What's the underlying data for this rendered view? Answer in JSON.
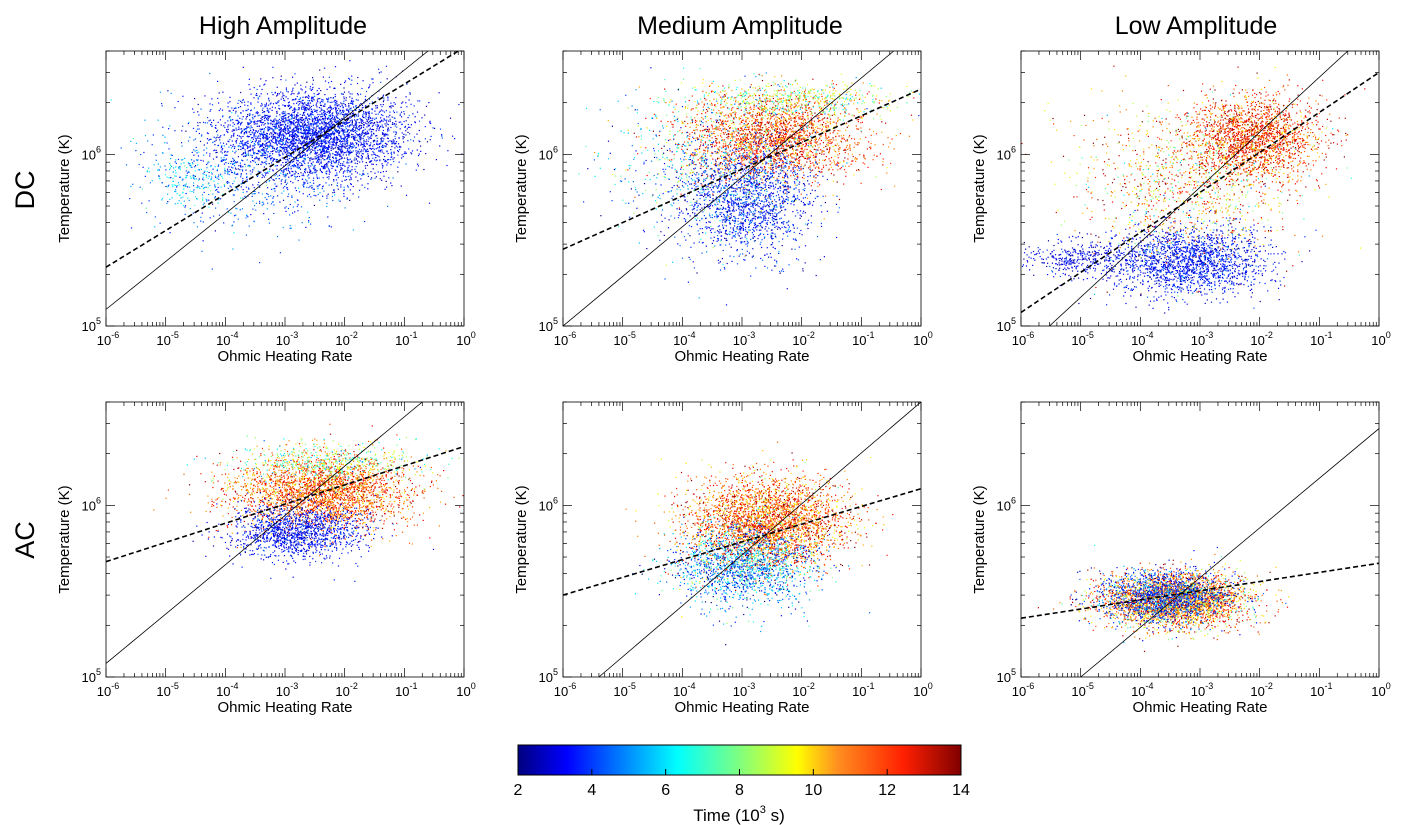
{
  "figure": {
    "columns": [
      "High Amplitude",
      "Medium Amplitude",
      "Low Amplitude"
    ],
    "rows": [
      "DC",
      "AC"
    ],
    "colorbar": {
      "label": "Time (10",
      "label_exp": "3",
      "label_end": " s)",
      "ticks": [
        "2",
        "4",
        "6",
        "8",
        "10",
        "12",
        "14"
      ],
      "range": [
        2,
        14
      ],
      "colormap": "jet"
    }
  },
  "chart_data": [
    {
      "type": "scatter",
      "panel": "DC / High Amplitude",
      "xlabel": "Ohmic Heating Rate",
      "ylabel": "Temperature (K)",
      "xscale": "log",
      "yscale": "log",
      "xlim": [
        1e-06,
        1
      ],
      "ylim": [
        100000.0,
        4000000.0
      ],
      "xticks": [
        "10|-6",
        "10|-5",
        "10|-4",
        "10|-3",
        "10|-2",
        "10|-1",
        "10|0"
      ],
      "yticks": [
        "10|5",
        "10|6"
      ],
      "fit_solid": [
        [
          1e-06,
          125000.0
        ],
        [
          0.25,
          4000000.0
        ]
      ],
      "fit_dashed": [
        [
          1e-06,
          220000.0
        ],
        [
          0.8,
          4000000.0
        ]
      ],
      "clusters": [
        {
          "cx": -2.5,
          "cy": 6.12,
          "sx": 0.8,
          "sy": 0.13,
          "t": 3.5,
          "st": 0.6,
          "n": 3600
        },
        {
          "cx": -3.6,
          "cy": 5.9,
          "sx": 0.9,
          "sy": 0.18,
          "t": 4.5,
          "st": 0.9,
          "n": 700
        },
        {
          "cx": -4.6,
          "cy": 5.85,
          "sx": 0.35,
          "sy": 0.07,
          "t": 6.2,
          "st": 0.6,
          "n": 150
        }
      ]
    },
    {
      "type": "scatter",
      "panel": "DC / Medium Amplitude",
      "xlabel": "Ohmic Heating Rate",
      "ylabel": "Temperature (K)",
      "xscale": "log",
      "yscale": "log",
      "xlim": [
        1e-06,
        1
      ],
      "ylim": [
        100000.0,
        4000000.0
      ],
      "xticks": [
        "10|-6",
        "10|-5",
        "10|-4",
        "10|-3",
        "10|-2",
        "10|-1",
        "10|0"
      ],
      "yticks": [
        "10|5",
        "10|6"
      ],
      "fit_solid": [
        [
          1e-06,
          100000.0
        ],
        [
          0.35,
          4000000.0
        ]
      ],
      "fit_dashed": [
        [
          1e-06,
          280000.0
        ],
        [
          1,
          2400000.0
        ]
      ],
      "clusters": [
        {
          "cx": -2.5,
          "cy": 6.1,
          "sx": 0.75,
          "sy": 0.12,
          "t": 11.8,
          "st": 1.3,
          "n": 2400
        },
        {
          "cx": -2.9,
          "cy": 5.72,
          "sx": 0.55,
          "sy": 0.16,
          "t": 3.6,
          "st": 0.9,
          "n": 1500
        },
        {
          "cx": -2.2,
          "cy": 6.32,
          "sx": 0.9,
          "sy": 0.06,
          "t": 8.5,
          "st": 1.6,
          "n": 600
        },
        {
          "cx": -3.6,
          "cy": 5.95,
          "sx": 0.8,
          "sy": 0.2,
          "t": 5.5,
          "st": 2.0,
          "n": 700
        }
      ]
    },
    {
      "type": "scatter",
      "panel": "DC / Low Amplitude",
      "xlabel": "Ohmic Heating Rate",
      "ylabel": "Temperature (K)",
      "xscale": "log",
      "yscale": "log",
      "xlim": [
        1e-06,
        1
      ],
      "ylim": [
        100000.0,
        4000000.0
      ],
      "xticks": [
        "10|-6",
        "10|-5",
        "10|-4",
        "10|-3",
        "10|-2",
        "10|-1",
        "10|0"
      ],
      "yticks": [
        "10|5",
        "10|6"
      ],
      "fit_solid": [
        [
          3e-06,
          100000.0
        ],
        [
          0.3,
          4000000.0
        ]
      ],
      "fit_dashed": [
        [
          1e-06,
          120000.0
        ],
        [
          1,
          3000000.0
        ]
      ],
      "clusters": [
        {
          "cx": -2.1,
          "cy": 6.1,
          "sx": 0.55,
          "sy": 0.12,
          "t": 12.0,
          "st": 1.2,
          "n": 2000
        },
        {
          "cx": -3.2,
          "cy": 5.38,
          "sx": 0.65,
          "sy": 0.1,
          "t": 3.5,
          "st": 0.7,
          "n": 1800
        },
        {
          "cx": -5.0,
          "cy": 5.4,
          "sx": 0.55,
          "sy": 0.06,
          "t": 3.2,
          "st": 0.6,
          "n": 400
        },
        {
          "cx": -3.2,
          "cy": 5.85,
          "sx": 0.9,
          "sy": 0.22,
          "t": 10.5,
          "st": 2.2,
          "n": 1200
        }
      ]
    },
    {
      "type": "scatter",
      "panel": "AC / High Amplitude",
      "xlabel": "Ohmic Heating Rate",
      "ylabel": "Temperature (K)",
      "xscale": "log",
      "yscale": "log",
      "xlim": [
        1e-06,
        1
      ],
      "ylim": [
        100000.0,
        4000000.0
      ],
      "xticks": [
        "10|-6",
        "10|-5",
        "10|-4",
        "10|-3",
        "10|-2",
        "10|-1",
        "10|0"
      ],
      "yticks": [
        "10|5",
        "10|6"
      ],
      "fit_solid": [
        [
          1e-06,
          120000.0
        ],
        [
          0.2,
          4000000.0
        ]
      ],
      "fit_dashed": [
        [
          1e-06,
          470000.0
        ],
        [
          1,
          2200000.0
        ]
      ],
      "clusters": [
        {
          "cx": -2.4,
          "cy": 6.08,
          "sx": 0.75,
          "sy": 0.11,
          "t": 11.5,
          "st": 1.2,
          "n": 2800
        },
        {
          "cx": -2.8,
          "cy": 5.85,
          "sx": 0.55,
          "sy": 0.08,
          "t": 3.5,
          "st": 0.6,
          "n": 1300
        },
        {
          "cx": -2.3,
          "cy": 6.25,
          "sx": 0.8,
          "sy": 0.06,
          "t": 8.0,
          "st": 1.5,
          "n": 500
        }
      ]
    },
    {
      "type": "scatter",
      "panel": "AC / Medium Amplitude",
      "xlabel": "Ohmic Heating Rate",
      "ylabel": "Temperature (K)",
      "xscale": "log",
      "yscale": "log",
      "xlim": [
        1e-06,
        1
      ],
      "ylim": [
        100000.0,
        4000000.0
      ],
      "xticks": [
        "10|-6",
        "10|-5",
        "10|-4",
        "10|-3",
        "10|-2",
        "10|-1",
        "10|0"
      ],
      "yticks": [
        "10|5",
        "10|6"
      ],
      "fit_solid": [
        [
          4e-06,
          100000.0
        ],
        [
          1,
          4000000.0
        ]
      ],
      "fit_dashed": [
        [
          1e-06,
          300000.0
        ],
        [
          1,
          1250000.0
        ]
      ],
      "clusters": [
        {
          "cx": -2.6,
          "cy": 5.9,
          "sx": 0.65,
          "sy": 0.13,
          "t": 11.5,
          "st": 1.4,
          "n": 3300
        },
        {
          "cx": -3.0,
          "cy": 5.65,
          "sx": 0.6,
          "sy": 0.12,
          "t": 5.0,
          "st": 1.8,
          "n": 1600
        }
      ]
    },
    {
      "type": "scatter",
      "panel": "AC / Low Amplitude",
      "xlabel": "Ohmic Heating Rate",
      "ylabel": "Temperature (K)",
      "xscale": "log",
      "yscale": "log",
      "xlim": [
        1e-06,
        1
      ],
      "ylim": [
        100000.0,
        4000000.0
      ],
      "xticks": [
        "10|-6",
        "10|-5",
        "10|-4",
        "10|-3",
        "10|-2",
        "10|-1",
        "10|0"
      ],
      "yticks": [
        "10|5",
        "10|6"
      ],
      "fit_solid": [
        [
          1e-05,
          100000.0
        ],
        [
          1,
          2800000.0
        ]
      ],
      "fit_dashed": [
        [
          1e-06,
          220000.0
        ],
        [
          1,
          460000.0
        ]
      ],
      "clusters": [
        {
          "cx": -3.45,
          "cy": 5.45,
          "sx": 0.6,
          "sy": 0.08,
          "t": 11.0,
          "st": 1.8,
          "n": 3200
        },
        {
          "cx": -3.6,
          "cy": 5.47,
          "sx": 0.55,
          "sy": 0.08,
          "t": 4.0,
          "st": 1.0,
          "n": 1300
        }
      ]
    }
  ]
}
